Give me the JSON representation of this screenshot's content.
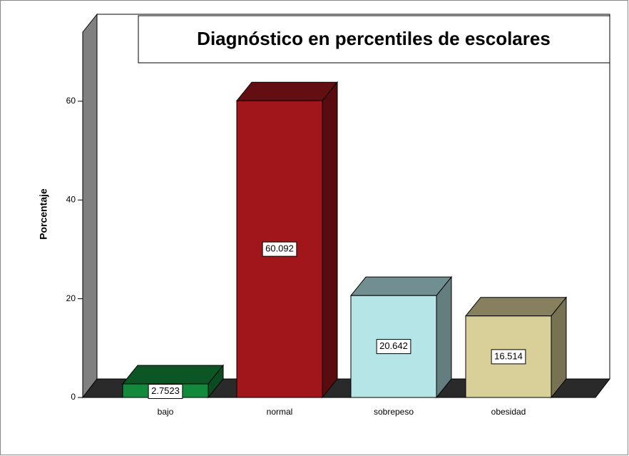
{
  "chart_data": {
    "type": "bar3d",
    "title": "Diagnóstico en percentiles de escolares",
    "y_label": "Porcentaje",
    "categories": [
      "bajo",
      "normal",
      "sobrepeso",
      "obesidad"
    ],
    "values": [
      2.7523,
      60.092,
      20.642,
      16.514
    ],
    "colors": [
      "#13893b",
      "#a0161a",
      "#b6e5e8",
      "#d8cf99"
    ],
    "ylim": [
      0,
      74
    ],
    "yticks": [
      0,
      20,
      40,
      60
    ]
  }
}
